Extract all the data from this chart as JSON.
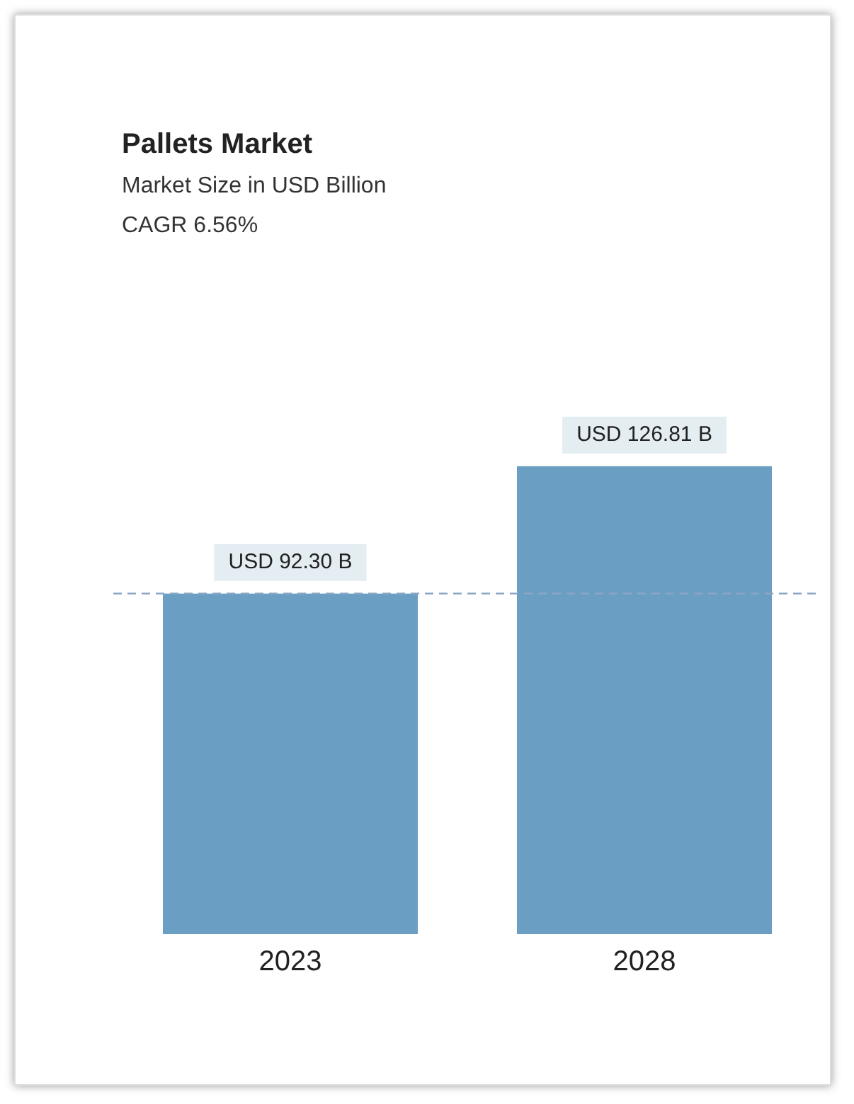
{
  "chart_data": {
    "type": "bar",
    "title": "Pallets Market",
    "subtitle": "Market Size in USD Billion",
    "annotations": [
      "CAGR 6.56%"
    ],
    "categories": [
      "2023",
      "2028"
    ],
    "values": [
      92.3,
      126.81
    ],
    "value_labels": [
      "USD 92.30 B",
      "USD 126.81 B"
    ],
    "colors": [
      "#6a9fc3",
      "#6a9fc3"
    ],
    "ref_lines": [
      {
        "axis": "y",
        "value": 92.3,
        "color": "#8aa6c4",
        "line_style": "dashed"
      }
    ],
    "tick_labels": "x",
    "grid": false,
    "legend": false
  }
}
